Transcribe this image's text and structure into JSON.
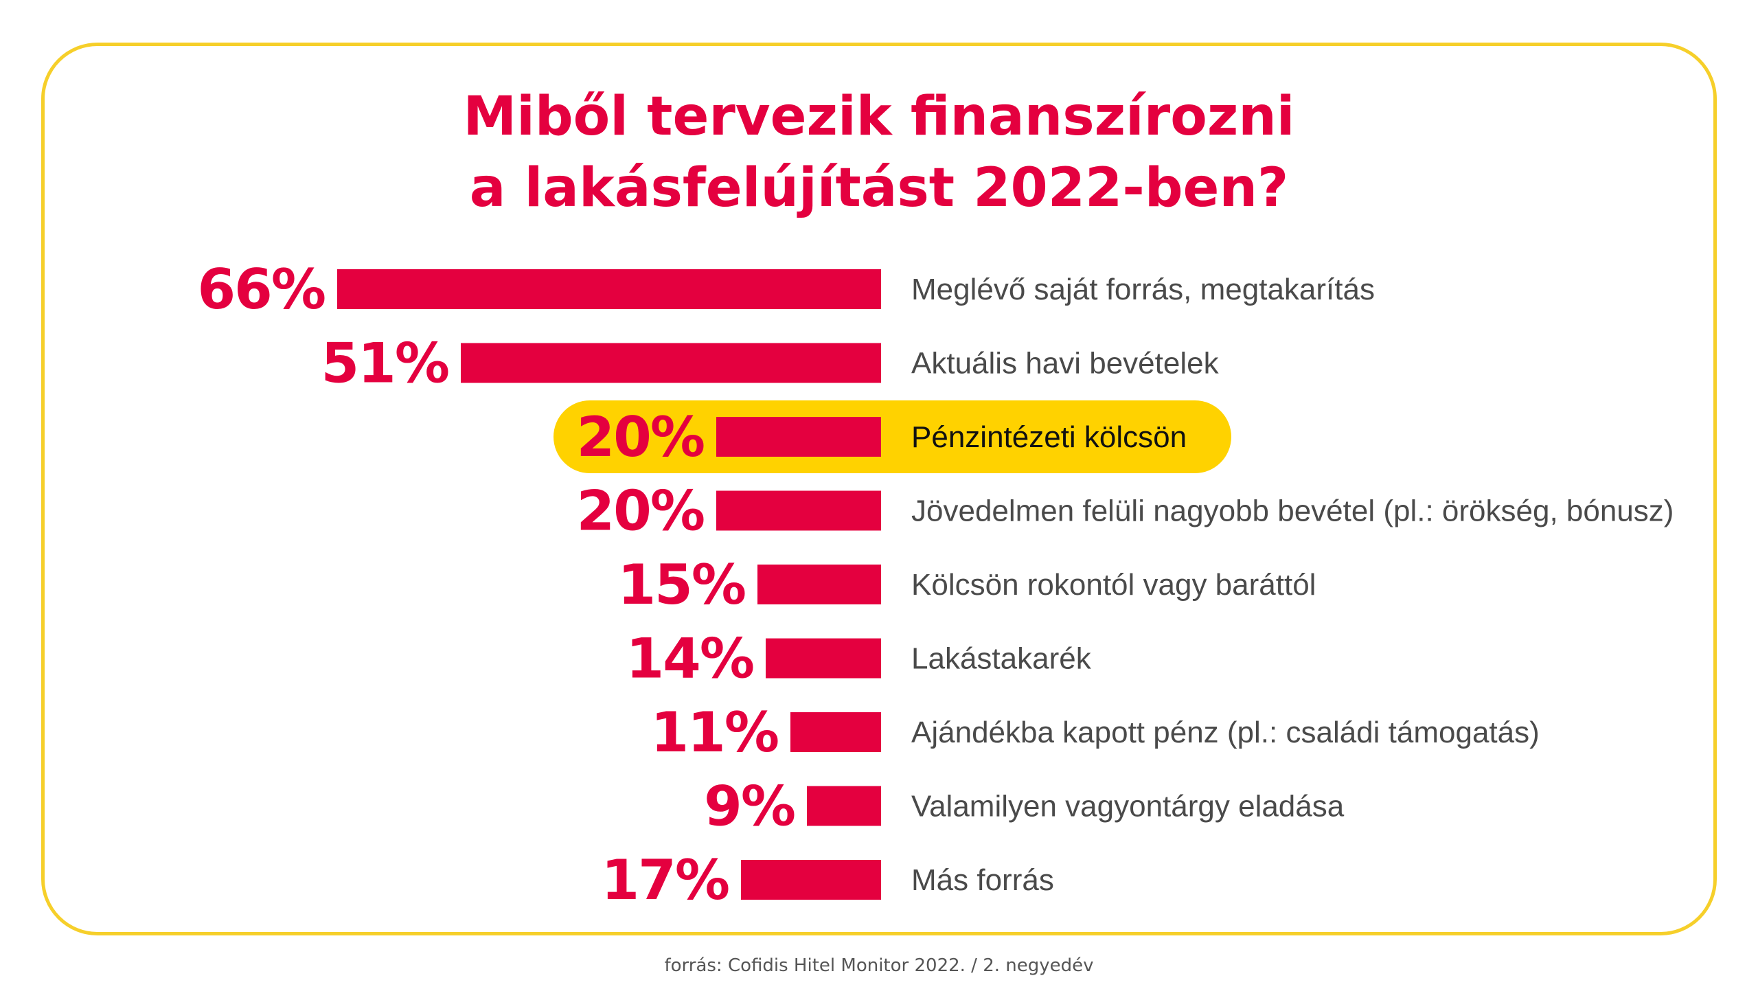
{
  "chart_data": {
    "type": "bar",
    "orientation": "horizontal",
    "title_lines": [
      "Miből tervezik finanszírozni",
      "a lakásfelújítást 2022-ben?"
    ],
    "categories": [
      "Meglévő saját forrás, megtakarítás",
      "Aktuális havi bevételek",
      "Pénzintézeti kölcsön",
      "Jövedelmen felüli nagyobb bevétel (pl.: örökség, bónusz)",
      "Kölcsön rokontól vagy baráttól",
      "Lakástakarék",
      "Ajándékba kapott pénz (pl.: családi támogatás)",
      "Valamilyen vagyontárgy eladása",
      "Más forrás"
    ],
    "values": [
      66,
      51,
      20,
      20,
      15,
      14,
      11,
      9,
      17
    ],
    "value_labels": [
      "66%",
      "51%",
      "20%",
      "20%",
      "15%",
      "14%",
      "11%",
      "9%",
      "17%"
    ],
    "highlighted_category": "Pénzintézeti kölcsön",
    "unit": "%",
    "grid": false,
    "legend": "none"
  },
  "source": "forrás: Cofidis Hitel Monitor 2022. / 2. negyedév",
  "colors": {
    "bar": "#e4003f",
    "value_label": "#e4003f",
    "title": "#e4003f",
    "frame": "#f6cf2a",
    "highlight": "#ffd200",
    "category_label": "#4a4a4a",
    "category_label_highlight": "#111111",
    "source": "#555555"
  }
}
